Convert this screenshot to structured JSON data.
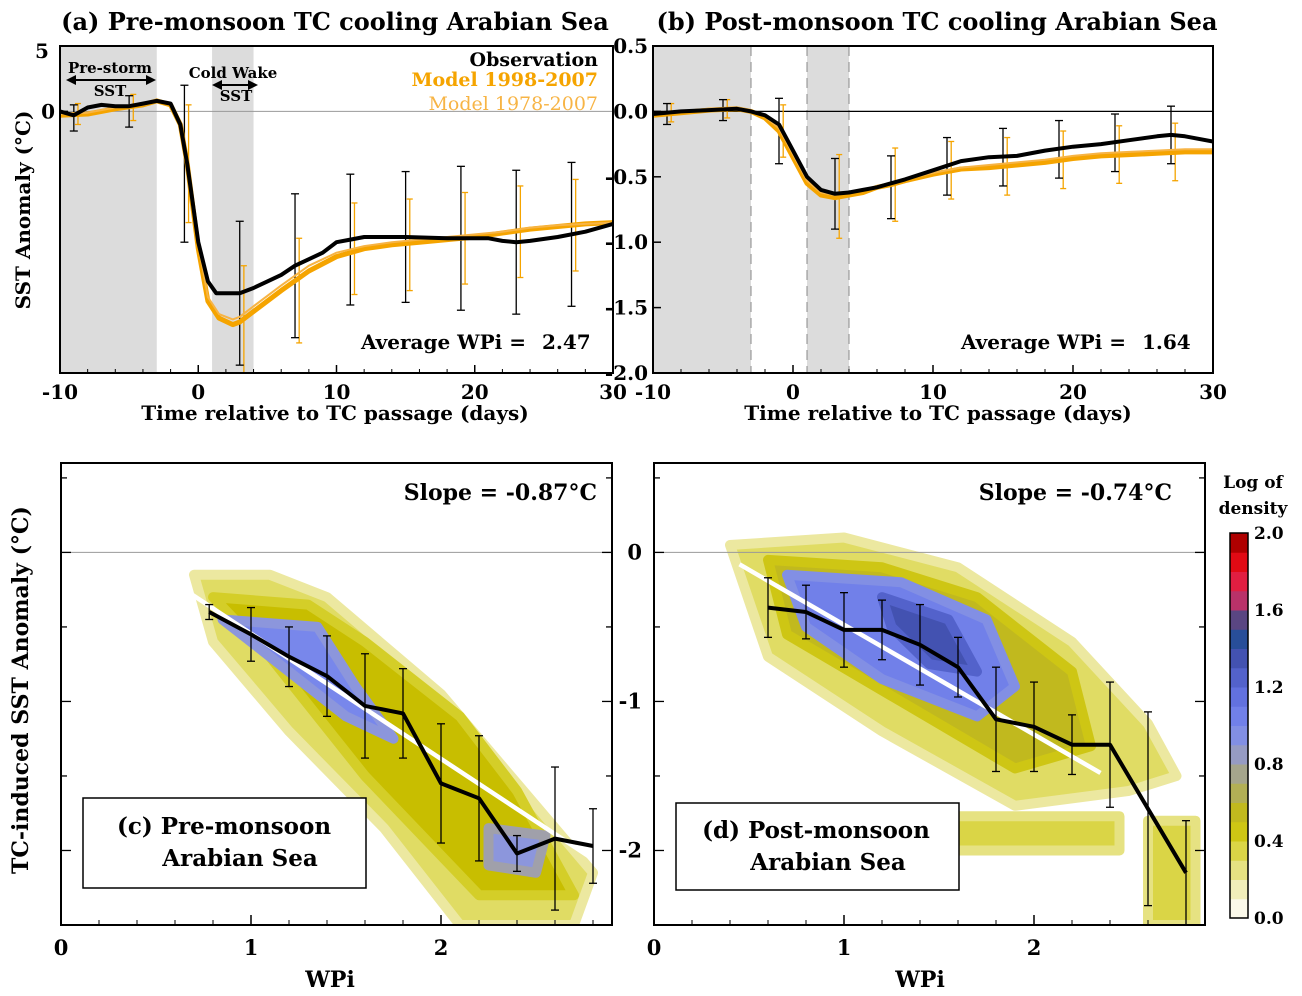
{
  "chart_data": [
    {
      "panel": "a",
      "type": "line",
      "title": "(a) Pre-monsoon TC cooling Arabian Sea",
      "xlabel": "Time relative to TC passage (days)",
      "ylabel": "SST Anomaly (°C)",
      "xlim": [
        -10,
        30
      ],
      "ylim": [
        -2.0,
        0.5
      ],
      "xticks": [
        -10,
        0,
        10,
        20,
        30
      ],
      "yticks": [
        0
      ],
      "ytick_labels": [
        "0"
      ],
      "extra_labels": [
        "5"
      ],
      "shaded_periods": [
        [
          -10,
          -3
        ],
        [
          1,
          4
        ]
      ],
      "period_labels": {
        "pre_storm_top": "Pre-storm",
        "pre_storm_bottom": "SST",
        "cold_wake_top": "Cold Wake",
        "cold_wake_bottom": "SST"
      },
      "legend": {
        "observation": "Observation",
        "model_a": "Model 1998-2007",
        "model_b": "Model 1978-2007",
        "position": "top-right"
      },
      "annotation": {
        "label": "Average WPi =",
        "value": "2.47"
      },
      "series": [
        {
          "name": "Observation",
          "color": "#000000",
          "x": [
            -10,
            -9,
            -8,
            -7,
            -6,
            -5,
            -4,
            -3,
            -2,
            -1.3,
            -0.8,
            0,
            0.7,
            1.3,
            2,
            3,
            4,
            5,
            6,
            7,
            8,
            9,
            10,
            11,
            12,
            15,
            18,
            21,
            22,
            23,
            24,
            26,
            28,
            29,
            30
          ],
          "y": [
            0,
            -0.03,
            0.03,
            0.05,
            0.04,
            0.04,
            0.06,
            0.08,
            0.06,
            -0.1,
            -0.4,
            -1.0,
            -1.3,
            -1.39,
            -1.39,
            -1.39,
            -1.35,
            -1.3,
            -1.25,
            -1.18,
            -1.13,
            -1.08,
            -1.0,
            -0.98,
            -0.96,
            -0.96,
            -0.97,
            -0.97,
            -0.99,
            -1.0,
            -0.99,
            -0.96,
            -0.92,
            -0.89,
            -0.86
          ]
        },
        {
          "name": "Model 1998-2007",
          "color": "#f5a400",
          "x": [
            -10,
            -8,
            -6,
            -4,
            -3,
            -2,
            -1.3,
            -0.8,
            0,
            0.7,
            1.5,
            2.5,
            3,
            4,
            6,
            8,
            10,
            12,
            14,
            16,
            18,
            20,
            22,
            24,
            26,
            28,
            30
          ],
          "y": [
            -0.03,
            -0.02,
            0.02,
            0.05,
            0.08,
            0.05,
            -0.1,
            -0.4,
            -1.05,
            -1.45,
            -1.58,
            -1.63,
            -1.61,
            -1.53,
            -1.37,
            -1.22,
            -1.11,
            -1.05,
            -1.02,
            -1.0,
            -0.98,
            -0.96,
            -0.93,
            -0.9,
            -0.88,
            -0.86,
            -0.85
          ]
        },
        {
          "name": "Model 1978-2007",
          "color": "#f7b445",
          "x": [
            -10,
            -8,
            -6,
            -4,
            -3,
            -2,
            -1.3,
            -0.8,
            0,
            0.7,
            1.5,
            2.5,
            3,
            4,
            6,
            8,
            10,
            12,
            14,
            16,
            18,
            20,
            22,
            24,
            26,
            28,
            30
          ],
          "y": [
            -0.02,
            -0.01,
            0.03,
            0.05,
            0.08,
            0.05,
            -0.1,
            -0.38,
            -1.02,
            -1.42,
            -1.55,
            -1.59,
            -1.57,
            -1.49,
            -1.33,
            -1.18,
            -1.08,
            -1.03,
            -1.0,
            -0.98,
            -0.96,
            -0.94,
            -0.92,
            -0.89,
            -0.87,
            -0.86,
            -0.85
          ]
        }
      ],
      "error_bars": {
        "observation": [
          [
            -9,
            -0.05,
            0.1
          ],
          [
            -5,
            0.0,
            0.12
          ],
          [
            -1,
            -0.4,
            0.6
          ],
          [
            3,
            -1.39,
            0.55
          ],
          [
            7,
            -1.18,
            0.55
          ],
          [
            11,
            -0.98,
            0.5
          ],
          [
            15,
            -0.96,
            0.5
          ],
          [
            19,
            -0.97,
            0.55
          ],
          [
            23,
            -1.0,
            0.55
          ],
          [
            27,
            -0.94,
            0.55
          ]
        ],
        "model": [
          [
            -9,
            -0.02,
            0.08
          ],
          [
            -5,
            0.03,
            0.1
          ],
          [
            -1,
            -0.4,
            0.45
          ],
          [
            3,
            -1.6,
            0.42
          ],
          [
            7,
            -1.37,
            0.4
          ],
          [
            11,
            -1.05,
            0.35
          ],
          [
            15,
            -1.02,
            0.35
          ],
          [
            19,
            -0.97,
            0.35
          ],
          [
            23,
            -0.92,
            0.35
          ],
          [
            27,
            -0.87,
            0.35
          ]
        ]
      }
    },
    {
      "panel": "b",
      "type": "line",
      "title": "(b) Post-monsoon TC cooling Arabian Sea",
      "xlabel": "Time relative to TC passage (days)",
      "ylabel": "",
      "xlim": [
        -10,
        30
      ],
      "ylim": [
        -2.0,
        0.5
      ],
      "xticks": [
        -10,
        0,
        10,
        20,
        30
      ],
      "yticks": [
        0.5,
        0.0,
        -0.5,
        -1.0,
        -1.5,
        -2.0
      ],
      "ytick_labels": [
        "0.5",
        "0.0",
        "-0.5",
        "-1.0",
        "-1.5",
        "-2.0"
      ],
      "shaded_periods": [
        [
          -10,
          -3
        ],
        [
          1,
          4
        ]
      ],
      "annotation": {
        "label": "Average WPi =",
        "value": "1.64"
      },
      "series": [
        {
          "name": "Observation",
          "color": "#000000",
          "x": [
            -10,
            -8,
            -6,
            -4,
            -3,
            -2,
            -1,
            0,
            1,
            2,
            3,
            4,
            5,
            6,
            7,
            8,
            10,
            12,
            14,
            16,
            18,
            20,
            22,
            24,
            26,
            27,
            28,
            30
          ],
          "y": [
            -0.02,
            0.0,
            0.01,
            0.02,
            0.0,
            -0.03,
            -0.1,
            -0.3,
            -0.5,
            -0.6,
            -0.63,
            -0.62,
            -0.6,
            -0.58,
            -0.55,
            -0.52,
            -0.45,
            -0.38,
            -0.35,
            -0.34,
            -0.3,
            -0.27,
            -0.25,
            -0.22,
            -0.19,
            -0.18,
            -0.19,
            -0.23
          ]
        },
        {
          "name": "Model 1998-2007",
          "color": "#f5a400",
          "x": [
            -10,
            -8,
            -6,
            -4,
            -3,
            -2,
            -1,
            0,
            1,
            2,
            3,
            4,
            5,
            6,
            7,
            8,
            10,
            12,
            14,
            16,
            18,
            20,
            22,
            24,
            26,
            28,
            30
          ],
          "y": [
            -0.03,
            -0.01,
            0.01,
            0.02,
            0.0,
            -0.05,
            -0.15,
            -0.35,
            -0.55,
            -0.64,
            -0.66,
            -0.64,
            -0.62,
            -0.58,
            -0.56,
            -0.53,
            -0.48,
            -0.44,
            -0.43,
            -0.41,
            -0.39,
            -0.36,
            -0.34,
            -0.33,
            -0.32,
            -0.31,
            -0.31
          ]
        },
        {
          "name": "Model 1978-2007",
          "color": "#f7b445",
          "x": [
            -10,
            -8,
            -6,
            -4,
            -3,
            -2,
            -1,
            0,
            1,
            2,
            3,
            4,
            5,
            6,
            7,
            8,
            10,
            12,
            14,
            16,
            18,
            20,
            22,
            24,
            26,
            28,
            30
          ],
          "y": [
            -0.02,
            0.0,
            0.02,
            0.03,
            0.01,
            -0.04,
            -0.13,
            -0.33,
            -0.53,
            -0.62,
            -0.64,
            -0.62,
            -0.6,
            -0.57,
            -0.55,
            -0.52,
            -0.47,
            -0.43,
            -0.41,
            -0.39,
            -0.37,
            -0.34,
            -0.32,
            -0.31,
            -0.3,
            -0.29,
            -0.29
          ]
        }
      ],
      "error_bars": {
        "observation": [
          [
            -9,
            -0.02,
            0.08
          ],
          [
            -5,
            0.01,
            0.08
          ],
          [
            -1,
            -0.15,
            0.25
          ],
          [
            3,
            -0.63,
            0.27
          ],
          [
            7,
            -0.58,
            0.24
          ],
          [
            11,
            -0.42,
            0.22
          ],
          [
            15,
            -0.35,
            0.22
          ],
          [
            19,
            -0.29,
            0.22
          ],
          [
            23,
            -0.24,
            0.22
          ],
          [
            27,
            -0.18,
            0.22
          ]
        ],
        "model": [
          [
            -9,
            -0.01,
            0.07
          ],
          [
            -5,
            0.02,
            0.07
          ],
          [
            -1,
            -0.15,
            0.2
          ],
          [
            3,
            -0.65,
            0.32
          ],
          [
            7,
            -0.56,
            0.28
          ],
          [
            11,
            -0.45,
            0.22
          ],
          [
            15,
            -0.42,
            0.22
          ],
          [
            19,
            -0.37,
            0.22
          ],
          [
            23,
            -0.33,
            0.22
          ],
          [
            27,
            -0.31,
            0.22
          ]
        ]
      }
    },
    {
      "panel": "c",
      "type": "heatmap",
      "label_line1": "(c) Pre-monsoon",
      "label_line2": "Arabian Sea",
      "xlabel": "WPi",
      "ylabel": "TC-induced SST Anomaly (°C)",
      "xlim": [
        0,
        2.9
      ],
      "ylim": [
        -2.5,
        0.6
      ],
      "xticks": [
        0,
        1,
        2
      ],
      "yticks": [
        0,
        -1,
        -2
      ],
      "slope_label": "Slope = -0.87°C",
      "regression_line": {
        "x": [
          0.65,
          2.85
        ],
        "y": [
          -0.25,
          -2.1
        ]
      },
      "mean_line": {
        "x": [
          0.78,
          1.0,
          1.2,
          1.4,
          1.6,
          1.8,
          2.0,
          2.2,
          2.4,
          2.6,
          2.8
        ],
        "y": [
          -0.4,
          -0.55,
          -0.7,
          -0.83,
          -1.03,
          -1.08,
          -1.55,
          -1.65,
          -2.02,
          -1.92,
          -1.97
        ]
      },
      "error_bars": [
        [
          0.78,
          -0.4,
          0.05
        ],
        [
          1.0,
          -0.55,
          0.18
        ],
        [
          1.2,
          -0.7,
          0.2
        ],
        [
          1.4,
          -0.83,
          0.27
        ],
        [
          1.6,
          -1.03,
          0.35
        ],
        [
          1.8,
          -1.08,
          0.3
        ],
        [
          2.0,
          -1.55,
          0.4
        ],
        [
          2.2,
          -1.65,
          0.42
        ],
        [
          2.4,
          -2.02,
          0.12
        ],
        [
          2.6,
          -1.92,
          0.48
        ],
        [
          2.8,
          -1.97,
          0.25
        ]
      ],
      "density_blobs": [
        {
          "x": [
            0.7,
            1.1,
            1.4,
            2.0,
            2.4,
            2.8,
            2.7,
            2.1,
            1.7,
            1.2,
            0.8
          ],
          "y": [
            -0.15,
            -0.15,
            -0.3,
            -0.95,
            -1.55,
            -2.15,
            -2.5,
            -2.5,
            -1.85,
            -1.2,
            -0.6
          ],
          "level": 0.3
        },
        {
          "x": [
            0.8,
            1.3,
            1.6,
            2.1,
            2.4,
            2.7,
            2.2,
            1.6,
            1.1
          ],
          "y": [
            -0.3,
            -0.35,
            -0.6,
            -1.1,
            -1.6,
            -2.3,
            -2.3,
            -1.5,
            -0.7
          ],
          "level": 0.5
        },
        {
          "x": [
            0.85,
            1.35,
            1.55,
            1.75,
            1.5,
            1.0
          ],
          "y": [
            -0.45,
            -0.5,
            -0.9,
            -1.25,
            -1.1,
            -0.6
          ],
          "level": 1.0
        },
        {
          "x": [
            2.25,
            2.55,
            2.5,
            2.25
          ],
          "y": [
            -1.85,
            -1.9,
            -2.15,
            -2.1
          ],
          "level": 0.9
        }
      ]
    },
    {
      "panel": "d",
      "type": "heatmap",
      "label_line1": "(d) Post-monsoon",
      "label_line2": "Arabian Sea",
      "xlabel": "WPi",
      "ylabel": "",
      "xlim": [
        0,
        2.9
      ],
      "ylim": [
        -2.5,
        0.6
      ],
      "xticks": [
        0,
        1,
        2
      ],
      "yticks": [
        0,
        -1,
        -2
      ],
      "slope_label": "Slope = -0.74°C",
      "regression_line": {
        "x": [
          0.45,
          2.35
        ],
        "y": [
          -0.08,
          -1.48
        ]
      },
      "mean_line": {
        "x": [
          0.6,
          0.8,
          1.0,
          1.2,
          1.4,
          1.6,
          1.8,
          2.0,
          2.2,
          2.4,
          2.6,
          2.8
        ],
        "y": [
          -0.37,
          -0.4,
          -0.52,
          -0.52,
          -0.62,
          -0.77,
          -1.12,
          -1.17,
          -1.29,
          -1.29,
          -1.72,
          -2.15
        ]
      },
      "error_bars": [
        [
          0.6,
          -0.37,
          0.2
        ],
        [
          0.8,
          -0.4,
          0.18
        ],
        [
          1.0,
          -0.52,
          0.25
        ],
        [
          1.2,
          -0.52,
          0.2
        ],
        [
          1.4,
          -0.62,
          0.27
        ],
        [
          1.6,
          -0.77,
          0.2
        ],
        [
          1.8,
          -1.12,
          0.35
        ],
        [
          2.0,
          -1.17,
          0.3
        ],
        [
          2.2,
          -1.29,
          0.2
        ],
        [
          2.4,
          -1.29,
          0.42
        ],
        [
          2.6,
          -1.72,
          0.65
        ],
        [
          2.8,
          -2.15,
          0.35
        ]
      ],
      "density_blobs": [
        {
          "x": [
            0.4,
            1.0,
            1.6,
            2.2,
            2.6,
            2.75,
            2.5,
            1.9,
            1.2,
            0.6
          ],
          "y": [
            0.05,
            0.1,
            -0.1,
            -0.6,
            -1.15,
            -1.5,
            -1.6,
            -1.7,
            -1.2,
            -0.7
          ],
          "level": 0.3
        },
        {
          "x": [
            0.6,
            1.2,
            1.7,
            2.2,
            2.3,
            1.9,
            1.3,
            0.7
          ],
          "y": [
            -0.05,
            -0.1,
            -0.3,
            -0.8,
            -1.3,
            -1.45,
            -1.0,
            -0.55
          ],
          "level": 0.55
        },
        {
          "x": [
            0.7,
            1.3,
            1.75,
            1.9,
            1.7,
            1.2,
            0.8
          ],
          "y": [
            -0.15,
            -0.2,
            -0.45,
            -0.9,
            -1.1,
            -0.85,
            -0.5
          ],
          "level": 1.05
        },
        {
          "x": [
            1.2,
            1.55,
            1.7,
            1.45,
            1.25
          ],
          "y": [
            -0.3,
            -0.45,
            -0.8,
            -0.75,
            -0.5
          ],
          "level": 1.35
        },
        {
          "x": [
            1.2,
            2.45,
            2.45,
            1.2
          ],
          "y": [
            -1.77,
            -1.77,
            -2.0,
            -2.0
          ],
          "level": 0.35
        },
        {
          "x": [
            2.6,
            2.85,
            2.85,
            2.6
          ],
          "y": [
            -1.8,
            -1.8,
            -2.5,
            -2.5
          ],
          "level": 0.35
        }
      ]
    }
  ],
  "colorbar": {
    "title_line1": "Log of",
    "title_line2": "density",
    "min": 0.0,
    "max": 2.0,
    "tick_labels": [
      "2.0",
      "1.6",
      "1.2",
      "0.8",
      "0.4",
      "0.0"
    ],
    "tick_values": [
      2.0,
      1.6,
      1.2,
      0.8,
      0.4,
      0.0
    ]
  },
  "colors": {
    "observation": "#000000",
    "model_1998": "#f5a400",
    "model_1978": "#f7b445",
    "shade": "#dcdcdc"
  }
}
